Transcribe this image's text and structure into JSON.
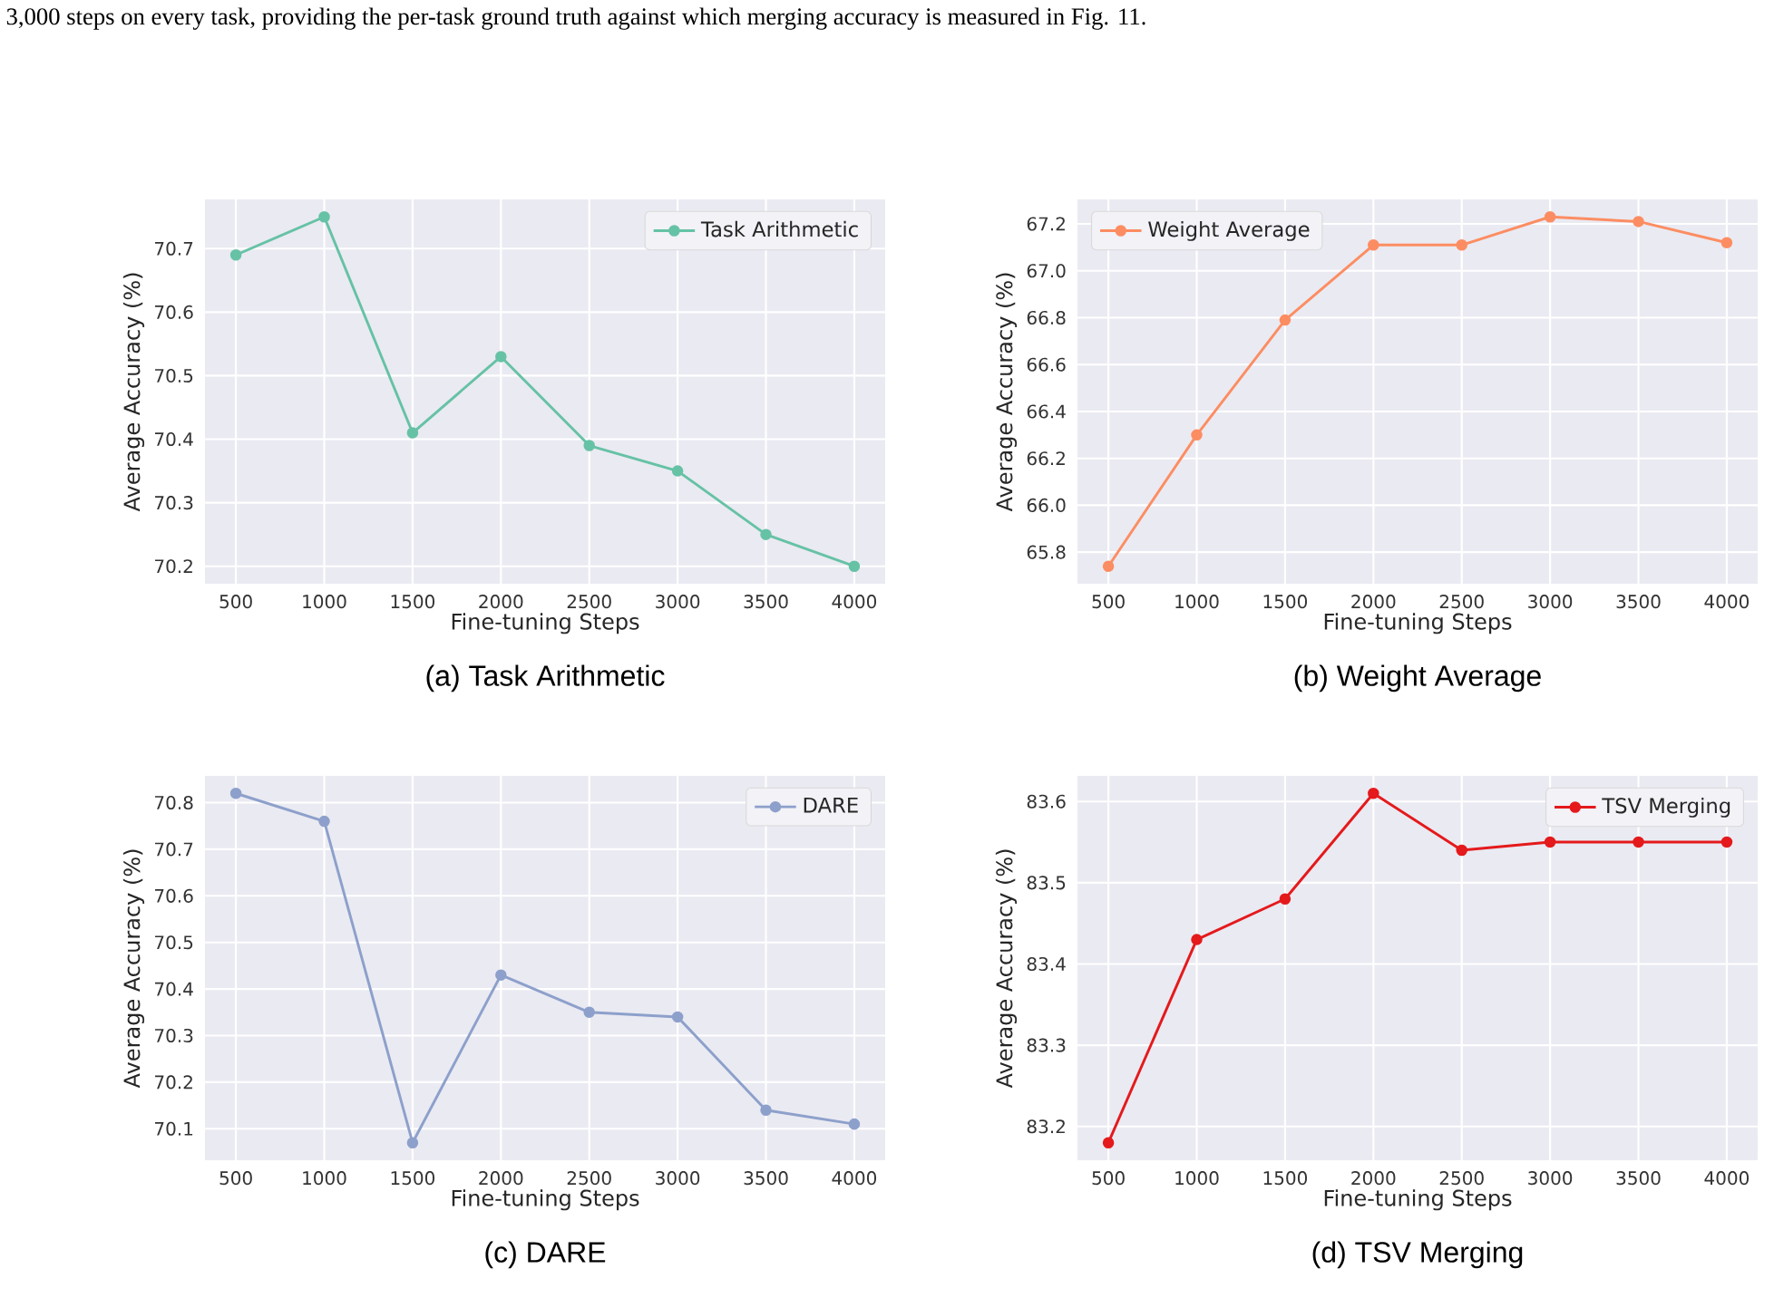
{
  "chart_data": [
    {
      "type": "line",
      "title": "(a) Task Arithmetic",
      "xlabel": "Fine-tuning Steps",
      "ylabel": "Average Accuracy (%)",
      "annotations": [
        "3,000 steps on every task, providing the per-task ground truth against which merging accuracy is measured in Fig. 11."
      ],
      "x": [
        500,
        1000,
        1500,
        2000,
        2500,
        3000,
        3500,
        4000
      ],
      "series": [
        {
          "name": "Task Arithmetic",
          "color": "#66c2a5",
          "values": [
            70.69,
            70.75,
            70.41,
            70.53,
            70.39,
            70.35,
            70.25,
            70.2
          ]
        }
      ],
      "xlim": [
        325,
        4175
      ],
      "ylim": [
        70.1725,
        70.7775
      ],
      "xticks": [
        500,
        1000,
        1500,
        2000,
        2500,
        3000,
        3500,
        4000
      ],
      "yticks": [
        70.2,
        70.3,
        70.4,
        70.5,
        70.6,
        70.7
      ],
      "grid": true,
      "legend": "top right",
      "marker": "circle"
    },
    {
      "type": "line",
      "title": "(b) Weight Average",
      "xlabel": "Fine-tuning Steps",
      "ylabel": "Average Accuracy (%)",
      "x": [
        500,
        1000,
        1500,
        2000,
        2500,
        3000,
        3500,
        4000
      ],
      "series": [
        {
          "name": "Weight Average",
          "color": "#fc8d62",
          "values": [
            65.74,
            66.3,
            66.79,
            67.11,
            67.11,
            67.23,
            67.21,
            67.12
          ]
        }
      ],
      "xlim": [
        325,
        4175
      ],
      "ylim": [
        65.6655,
        67.3045
      ],
      "xticks": [
        500,
        1000,
        1500,
        2000,
        2500,
        3000,
        3500,
        4000
      ],
      "yticks": [
        65.8,
        {
          "value": 66.0,
          "label": "66.0"
        },
        66.2,
        66.4,
        66.6,
        66.8,
        {
          "value": 67.0,
          "label": "67.0"
        },
        67.2
      ],
      "grid": true,
      "legend": "top left",
      "marker": "circle"
    },
    {
      "type": "line",
      "title": "(c) DARE",
      "xlabel": "Fine-tuning Steps",
      "ylabel": "Average Accuracy (%)",
      "x": [
        500,
        1000,
        1500,
        2000,
        2500,
        3000,
        3500,
        4000
      ],
      "series": [
        {
          "name": "DARE",
          "color": "#8da0cb",
          "values": [
            70.82,
            70.76,
            70.07,
            70.43,
            70.35,
            70.34,
            70.14,
            70.11
          ]
        }
      ],
      "xlim": [
        325,
        4175
      ],
      "ylim": [
        70.0325,
        70.8575
      ],
      "xticks": [
        500,
        1000,
        1500,
        2000,
        2500,
        3000,
        3500,
        4000
      ],
      "yticks": [
        70.1,
        70.2,
        70.3,
        70.4,
        70.5,
        70.6,
        70.7,
        70.8
      ],
      "grid": true,
      "legend": "top right",
      "marker": "circle"
    },
    {
      "type": "line",
      "title": "(d) TSV Merging",
      "xlabel": "Fine-tuning Steps",
      "ylabel": "Average Accuracy (%)",
      "x": [
        500,
        1000,
        1500,
        2000,
        2500,
        3000,
        3500,
        4000
      ],
      "series": [
        {
          "name": "TSV Merging",
          "color": "#e41a1c",
          "values": [
            83.18,
            83.43,
            83.48,
            83.61,
            83.54,
            83.55,
            83.55,
            83.55
          ]
        }
      ],
      "xlim": [
        325,
        4175
      ],
      "ylim": [
        83.1585,
        83.6315
      ],
      "xticks": [
        500,
        1000,
        1500,
        2000,
        2500,
        3000,
        3500,
        4000
      ],
      "yticks": [
        83.2,
        83.3,
        83.4,
        83.5,
        83.6
      ],
      "grid": true,
      "legend": "top right",
      "marker": "circle"
    }
  ]
}
